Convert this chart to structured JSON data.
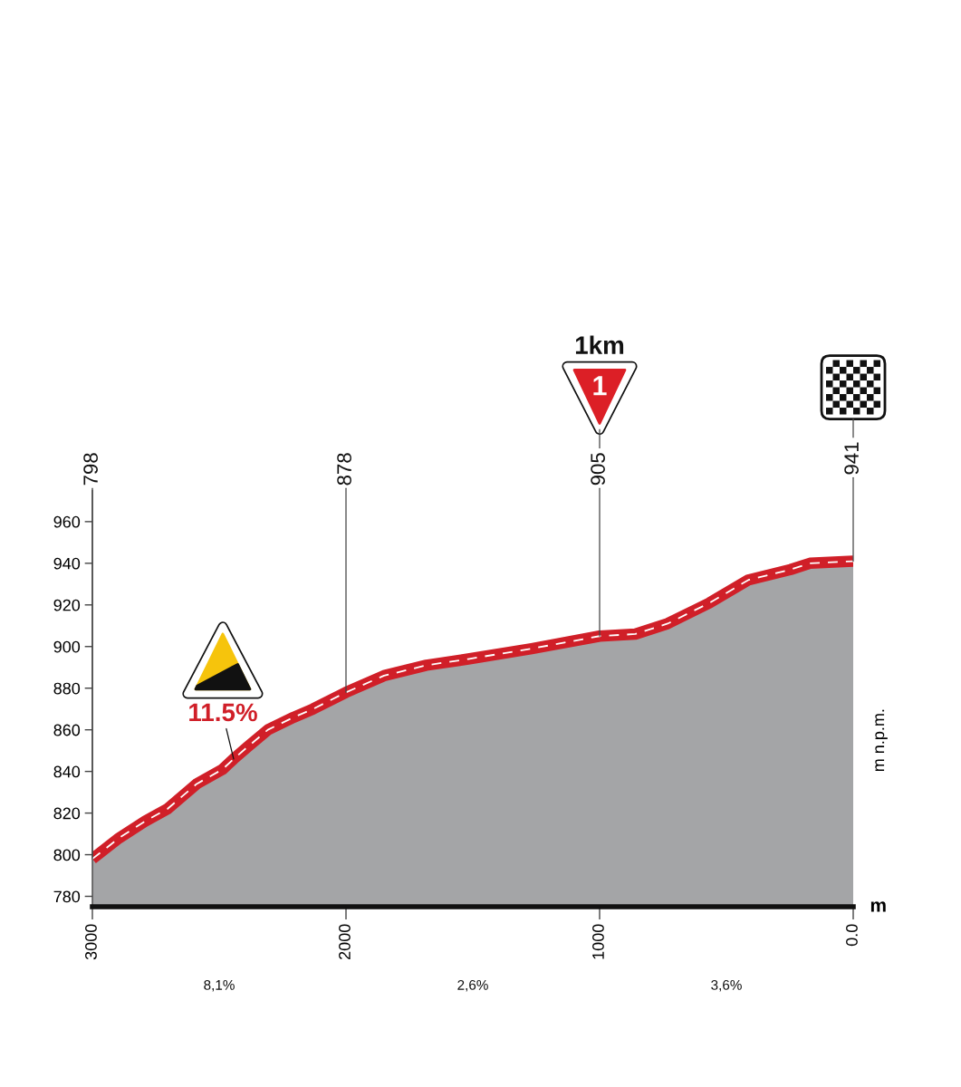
{
  "chart_data": {
    "type": "area",
    "xlabel": "m",
    "ylabel": "m n.p.m.",
    "x": [
      3000,
      2895,
      2793,
      2704,
      2589,
      2487,
      2443,
      2386,
      2308,
      2207,
      2130,
      2000,
      1850,
      1683,
      1518,
      1268,
      1000,
      859,
      732,
      566,
      413,
      247,
      171,
      0
    ],
    "series": [
      {
        "color": "#d01f28",
        "values": [
          798,
          808,
          816,
          822,
          834,
          841,
          846,
          852,
          860,
          866,
          870,
          878,
          886,
          891,
          894,
          899,
          905,
          906,
          911,
          921,
          932,
          937,
          940,
          941
        ],
        "value_labels": [
          "798",
          null,
          null,
          null,
          null,
          null,
          null,
          null,
          null,
          null,
          null,
          "878",
          null,
          null,
          null,
          null,
          "905",
          null,
          null,
          null,
          null,
          null,
          null,
          "941"
        ]
      }
    ],
    "xlim": [
      3000,
      0
    ],
    "xticks": [
      3000,
      2000,
      1000,
      {
        "value": 0,
        "label": "0.0"
      }
    ],
    "ylim": [
      775,
      975
    ],
    "yticks": [
      780,
      800,
      820,
      840,
      860,
      880,
      900,
      920,
      940,
      960
    ],
    "annotations": [
      {
        "text": "11.5%",
        "x": 2443,
        "y": 846
      },
      "1km",
      "1",
      "8,1%",
      "2,6%",
      "3,6%"
    ]
  }
}
